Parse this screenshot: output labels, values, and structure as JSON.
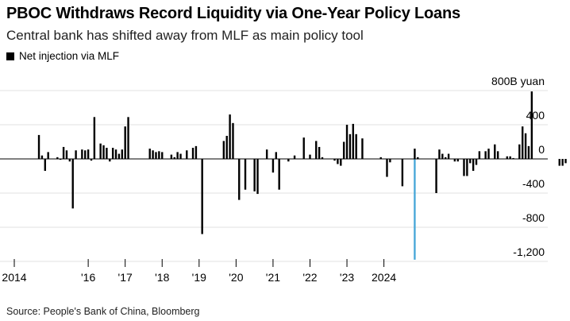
{
  "header": {
    "title": "PBOC Withdraws Record Liquidity via One-Year Policy Loans",
    "subtitle": "Central bank has shifted away from MLF as main policy tool"
  },
  "legend": {
    "label": "Net injection via MLF",
    "color": "#000000"
  },
  "source": "Source: People's Bank of China, Bloomberg",
  "colors": {
    "bar": "#000000",
    "highlight": "#4aa8d8",
    "grid": "#e0e0e0",
    "zero": "#000000"
  },
  "chart_data": {
    "type": "bar",
    "ylim": [
      -1250,
      800
    ],
    "y_ticks": [
      {
        "value": 800,
        "label": "800B yuan"
      },
      {
        "value": 400,
        "label": "400"
      },
      {
        "value": 0,
        "label": "0"
      },
      {
        "value": -400,
        "label": "-400"
      },
      {
        "value": -800,
        "label": "-800"
      },
      {
        "value": -1200,
        "label": "-1,200"
      }
    ],
    "x_ticks": [
      "2014",
      "'16",
      "'17",
      "'18",
      "'19",
      "'20",
      "'21",
      "'22",
      "'23",
      "2024"
    ],
    "x_tick_months": [
      0,
      24,
      36,
      48,
      60,
      72,
      84,
      96,
      108,
      120
    ],
    "grid": false,
    "series": [
      {
        "values": [
          0,
          0,
          0,
          0,
          0,
          0,
          0,
          0,
          280,
          40,
          -140,
          80,
          0,
          0,
          20,
          -10,
          140,
          100,
          -30,
          -580,
          100,
          0,
          110,
          100,
          110,
          -20,
          490,
          0,
          180,
          160,
          130,
          -30,
          130,
          110,
          60,
          110,
          380,
          490,
          0,
          0,
          0,
          0,
          0,
          0,
          120,
          100,
          80,
          90,
          80,
          0,
          0,
          50,
          20,
          80,
          60,
          0,
          100,
          0,
          130,
          150,
          0,
          -880,
          0,
          0,
          0,
          0,
          0,
          0,
          210,
          270,
          520,
          420,
          0,
          -480,
          0,
          -360,
          0,
          0,
          -380,
          -410,
          0,
          0,
          110,
          0,
          -160,
          80,
          -360,
          0,
          0,
          -30,
          0,
          40,
          0,
          0,
          250,
          0,
          50,
          0,
          210,
          140,
          20,
          0,
          0,
          0,
          -20,
          -60,
          -80,
          200,
          400,
          290,
          410,
          290,
          0,
          240,
          0,
          0,
          0,
          0,
          0,
          20,
          0,
          -210,
          -40,
          0,
          0,
          0,
          -320,
          0,
          0,
          0,
          120,
          20,
          0,
          0,
          0,
          0,
          0,
          -400,
          110,
          60,
          20,
          60,
          0,
          -30,
          -30,
          0,
          -200,
          -200,
          -50,
          -140,
          -70,
          90,
          0,
          90,
          120,
          0,
          170,
          90,
          0,
          0,
          30,
          30,
          10,
          0,
          170,
          380,
          300,
          150,
          790,
          0,
          0,
          0,
          0,
          0,
          0,
          0,
          0,
          -80,
          -80,
          -50,
          0,
          0,
          0,
          20,
          0,
          0,
          0,
          0,
          0,
          0,
          0,
          0,
          0,
          0
        ]
      }
    ],
    "highlight": {
      "month_index": 130,
      "value": -1180
    }
  }
}
